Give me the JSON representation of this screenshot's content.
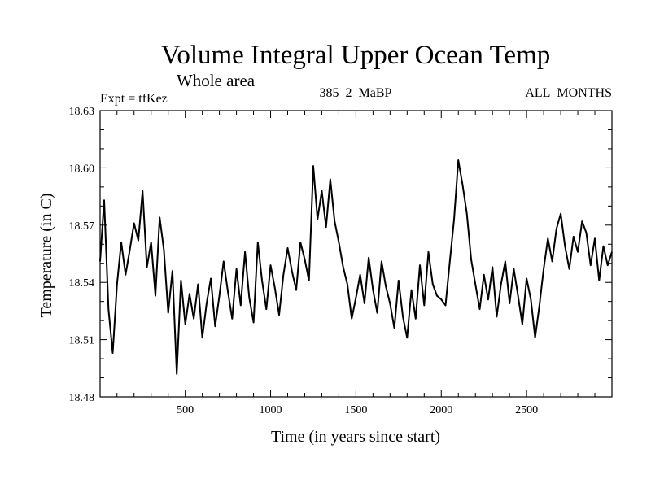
{
  "chart_data": {
    "type": "line",
    "title": "Volume Integral Upper Ocean Temp",
    "subtitle": "Whole area",
    "expt_label": "Expt = tfKez",
    "run_label": "385_2_MaBP",
    "months_label": "ALL_MONTHS",
    "xlabel": "Time (in years since start)",
    "ylabel": "Temperature (in C)",
    "xlim": [
      1,
      3000
    ],
    "ylim": [
      18.48,
      18.63
    ],
    "x_ticks": [
      500,
      1000,
      1500,
      2000,
      2500
    ],
    "x_tick_labels": [
      "500",
      "1000",
      "1500",
      "2000",
      "2500"
    ],
    "y_ticks": [
      18.48,
      18.51,
      18.54,
      18.57,
      18.6,
      18.63
    ],
    "y_tick_labels": [
      "18.48",
      "18.51",
      "18.54",
      "18.57",
      "18.60",
      "18.63"
    ],
    "grid": false,
    "series": [
      {
        "x": [
          1,
          25,
          50,
          75,
          100,
          125,
          150,
          175,
          200,
          225,
          250,
          275,
          300,
          325,
          350,
          375,
          400,
          425,
          450,
          475,
          500,
          525,
          550,
          575,
          600,
          625,
          650,
          675,
          700,
          725,
          750,
          775,
          800,
          825,
          850,
          875,
          900,
          925,
          950,
          975,
          1000,
          1025,
          1050,
          1075,
          1100,
          1125,
          1150,
          1175,
          1200,
          1225,
          1250,
          1275,
          1300,
          1325,
          1350,
          1375,
          1400,
          1425,
          1450,
          1475,
          1500,
          1525,
          1550,
          1575,
          1600,
          1625,
          1650,
          1675,
          1700,
          1725,
          1750,
          1775,
          1800,
          1825,
          1850,
          1875,
          1900,
          1925,
          1950,
          1975,
          2000,
          2025,
          2050,
          2075,
          2100,
          2125,
          2150,
          2175,
          2200,
          2225,
          2250,
          2275,
          2300,
          2325,
          2350,
          2375,
          2400,
          2425,
          2450,
          2475,
          2500,
          2525,
          2550,
          2575,
          2600,
          2625,
          2650,
          2675,
          2700,
          2725,
          2750,
          2775,
          2800,
          2825,
          2850,
          2875,
          2900,
          2925,
          2950,
          2975,
          3000
        ],
        "values": [
          18.551,
          18.583,
          18.526,
          18.503,
          18.539,
          18.561,
          18.544,
          18.557,
          18.571,
          18.562,
          18.588,
          18.548,
          18.561,
          18.533,
          18.574,
          18.557,
          18.524,
          18.546,
          18.492,
          18.541,
          18.518,
          18.534,
          18.521,
          18.539,
          18.511,
          18.529,
          18.542,
          18.517,
          18.533,
          18.551,
          18.535,
          18.521,
          18.547,
          18.528,
          18.556,
          18.532,
          18.519,
          18.561,
          18.541,
          18.526,
          18.549,
          18.537,
          18.523,
          18.544,
          18.558,
          18.546,
          18.536,
          18.561,
          18.552,
          18.541,
          18.601,
          18.573,
          18.588,
          18.569,
          18.594,
          18.572,
          18.561,
          18.548,
          18.539,
          18.521,
          18.532,
          18.544,
          18.529,
          18.553,
          18.536,
          18.524,
          18.551,
          18.538,
          18.529,
          18.516,
          18.541,
          18.522,
          18.511,
          18.536,
          18.521,
          18.549,
          18.528,
          18.556,
          18.539,
          18.533,
          18.531,
          18.528,
          18.551,
          18.573,
          18.604,
          18.591,
          18.576,
          18.552,
          18.539,
          18.526,
          18.544,
          18.531,
          18.548,
          18.522,
          18.539,
          18.551,
          18.529,
          18.547,
          18.533,
          18.518,
          18.542,
          18.531,
          18.511,
          18.528,
          18.547,
          18.563,
          18.551,
          18.568,
          18.576,
          18.559,
          18.547,
          18.564,
          18.556,
          18.572,
          18.566,
          18.549,
          18.563,
          18.541,
          18.559,
          18.549,
          18.556
        ]
      }
    ]
  }
}
